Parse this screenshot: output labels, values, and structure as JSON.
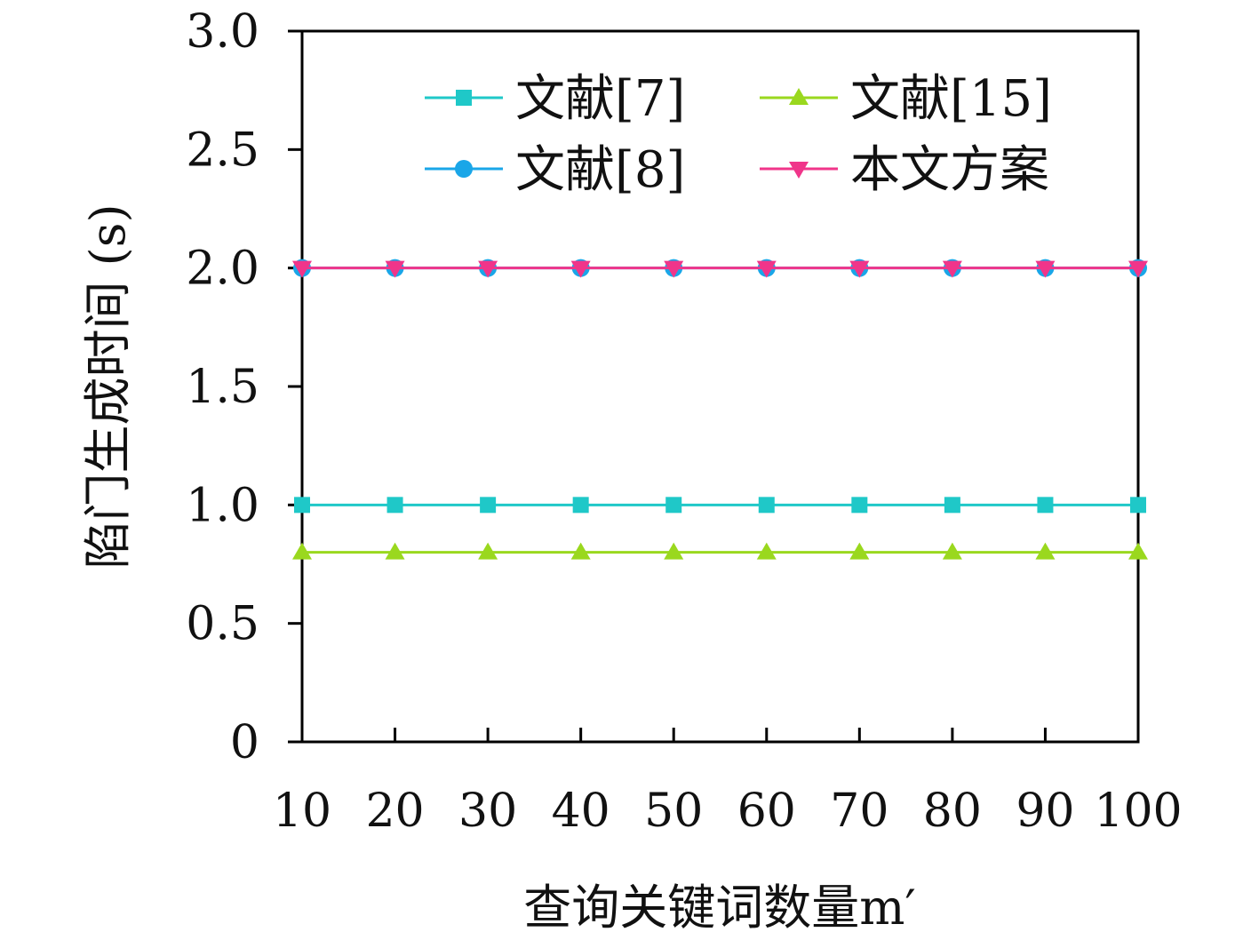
{
  "chart_data": {
    "type": "line",
    "title": "",
    "xlabel": "查询关键词数量m′",
    "ylabel": "陷门生成时间 (s)",
    "x": [
      10,
      20,
      30,
      40,
      50,
      60,
      70,
      80,
      90,
      100
    ],
    "x_tick_labels": [
      "10",
      "20",
      "30",
      "40",
      "50",
      "60",
      "70",
      "80",
      "90",
      "100"
    ],
    "y_ticks": [
      0,
      0.5,
      1.0,
      1.5,
      2.0,
      2.5,
      3.0
    ],
    "y_tick_labels": [
      "0",
      "0.5",
      "1.0",
      "1.5",
      "2.0",
      "2.5",
      "3.0"
    ],
    "xlim": [
      10,
      100
    ],
    "ylim": [
      0,
      3.0
    ],
    "grid": false,
    "legend_position": "top",
    "series": [
      {
        "name": "文献[7]",
        "values": [
          1.0,
          1.0,
          1.0,
          1.0,
          1.0,
          1.0,
          1.0,
          1.0,
          1.0,
          1.0
        ],
        "color": "#1fc8c8",
        "marker": "square"
      },
      {
        "name": "文献[8]",
        "values": [
          2.0,
          2.0,
          2.0,
          2.0,
          2.0,
          2.0,
          2.0,
          2.0,
          2.0,
          2.0
        ],
        "color": "#1aa6e8",
        "marker": "circle"
      },
      {
        "name": "文献[15]",
        "values": [
          0.8,
          0.8,
          0.8,
          0.8,
          0.8,
          0.8,
          0.8,
          0.8,
          0.8,
          0.8
        ],
        "color": "#9ad81e",
        "marker": "triangle-up"
      },
      {
        "name": "本文方案",
        "values": [
          2.0,
          2.0,
          2.0,
          2.0,
          2.0,
          2.0,
          2.0,
          2.0,
          2.0,
          2.0
        ],
        "color": "#f0358a",
        "marker": "triangle-down"
      }
    ]
  }
}
